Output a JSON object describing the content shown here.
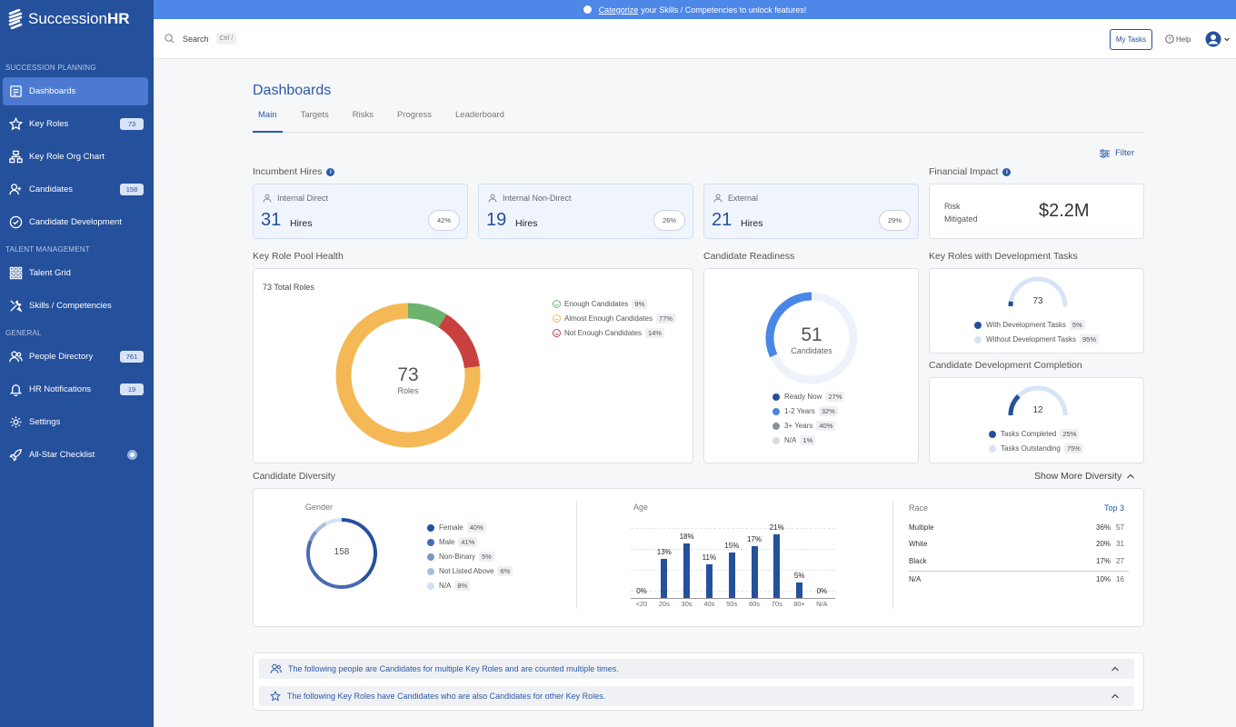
{
  "app": {
    "name_prefix": "Succession",
    "name_suffix": "HR"
  },
  "banner": {
    "link": "Categorize",
    "text": "your Skills / Competencies to unlock features!"
  },
  "sidebar": {
    "sections": [
      "SUCCESSION PLANNING",
      "TALENT MANAGEMENT",
      "GENERAL"
    ],
    "items": [
      {
        "label": "Dashboards",
        "icon": "dashboard-icon"
      },
      {
        "label": "Key Roles",
        "badge": "73",
        "icon": "star-icon"
      },
      {
        "label": "Key Role Org Chart",
        "icon": "org-chart-icon"
      },
      {
        "label": "Candidates",
        "badge": "158",
        "icon": "person-add-icon"
      },
      {
        "label": "Candidate Development",
        "icon": "check-circle-icon"
      },
      {
        "label": "Talent Grid",
        "icon": "grid-icon"
      },
      {
        "label": "Skills / Competencies",
        "icon": "tools-icon"
      },
      {
        "label": "People Directory",
        "badge": "761",
        "icon": "people-icon"
      },
      {
        "label": "HR Notifications",
        "badge": "19",
        "icon": "bell-icon"
      },
      {
        "label": "Settings",
        "icon": "gear-icon"
      },
      {
        "label": "All-Star Checklist",
        "icon": "rocket-icon"
      }
    ]
  },
  "topbar": {
    "search_label": "Search",
    "search_shortcut": "Ctrl /",
    "my_tasks": "My Tasks",
    "help": "Help"
  },
  "page": {
    "title": "Dashboards",
    "tabs": [
      "Main",
      "Targets",
      "Risks",
      "Progress",
      "Leaderboard"
    ],
    "filter": "Filter"
  },
  "incumbent": {
    "title": "Incumbent Hires",
    "cards": [
      {
        "label": "Internal Direct",
        "value": "31",
        "unit": "Hires",
        "pct": "42%"
      },
      {
        "label": "Internal Non-Direct",
        "value": "19",
        "unit": "Hires",
        "pct": "26%"
      },
      {
        "label": "External",
        "value": "21",
        "unit": "Hires",
        "pct": "29%"
      }
    ]
  },
  "financial": {
    "title": "Financial Impact",
    "label1": "Risk",
    "label2": "Mitigated",
    "value": "$2.2M"
  },
  "pool": {
    "title": "Key Role Pool Health",
    "total": "73 Total Roles",
    "center_value": "73",
    "center_label": "Roles",
    "legend": [
      {
        "label": "Enough Candidates",
        "pct": "9%",
        "color": "#6db36d"
      },
      {
        "label": "Almost Enough Candidates",
        "pct": "77%",
        "color": "#f4b955"
      },
      {
        "label": "Not Enough Candidates",
        "pct": "14%",
        "color": "#c9413e"
      }
    ]
  },
  "readiness": {
    "title": "Candidate Readiness",
    "center_value": "51",
    "center_label": "Candidates",
    "legend": [
      {
        "label": "Ready Now",
        "pct": "27%",
        "color": "#24509c"
      },
      {
        "label": "1-2 Years",
        "pct": "32%",
        "color": "#4a86e8"
      },
      {
        "label": "3+ Years",
        "pct": "40%",
        "color": "#8a8f99"
      },
      {
        "label": "N/A",
        "pct": "1%",
        "color": "#d8dce2"
      }
    ]
  },
  "dev_tasks": {
    "title": "Key Roles with Development Tasks",
    "value": "73",
    "legend": [
      {
        "label": "With Development Tasks",
        "pct": "5%",
        "color": "#24509c"
      },
      {
        "label": "Without Development Tasks",
        "pct": "95%",
        "color": "#d6e4f8"
      }
    ]
  },
  "dev_completion": {
    "title": "Candidate Development Completion",
    "value": "12",
    "legend": [
      {
        "label": "Tasks Completed",
        "pct": "25%",
        "color": "#24509c"
      },
      {
        "label": "Tasks Outstanding",
        "pct": "75%",
        "color": "#d6e4f8"
      }
    ]
  },
  "diversity": {
    "title": "Candidate Diversity",
    "toggle": "Show More Diversity",
    "gender": {
      "title": "Gender",
      "center": "158",
      "legend": [
        {
          "label": "Female",
          "pct": "40%",
          "color": "#24509c"
        },
        {
          "label": "Male",
          "pct": "41%",
          "color": "#4a6ab0"
        },
        {
          "label": "Non-Binary",
          "pct": "5%",
          "color": "#7d96c8"
        },
        {
          "label": "Not Listed Above",
          "pct": "6%",
          "color": "#a9bde0"
        },
        {
          "label": "N/A",
          "pct": "8%",
          "color": "#d3e0f5"
        }
      ]
    },
    "race": {
      "title": "Race",
      "link": "Top 3",
      "rows": [
        {
          "label": "Multiple",
          "pct": "36%",
          "count": "57"
        },
        {
          "label": "White",
          "pct": "20%",
          "count": "31"
        },
        {
          "label": "Black",
          "pct": "17%",
          "count": "27"
        },
        {
          "label": "N/A",
          "pct": "10%",
          "count": "16"
        }
      ]
    }
  },
  "chart_data": {
    "type": "bar",
    "title": "Age",
    "xlabel": "",
    "ylabel": "",
    "categories": [
      "<20",
      "20s",
      "30s",
      "40s",
      "50s",
      "60s",
      "70s",
      "80+",
      "N/A"
    ],
    "values": [
      0,
      13,
      18,
      11,
      15,
      17,
      21,
      5,
      0
    ],
    "labels": [
      "0%",
      "13%",
      "18%",
      "11%",
      "15%",
      "17%",
      "21%",
      "5%",
      "0%"
    ],
    "color": "#24509c"
  },
  "notices": [
    {
      "text": "The following people are Candidates for multiple Key Roles and are counted multiple times.",
      "icon": "people-icon"
    },
    {
      "text": "The following Key Roles have Candidates who are also Candidates for other Key Roles.",
      "icon": "star-icon"
    }
  ]
}
